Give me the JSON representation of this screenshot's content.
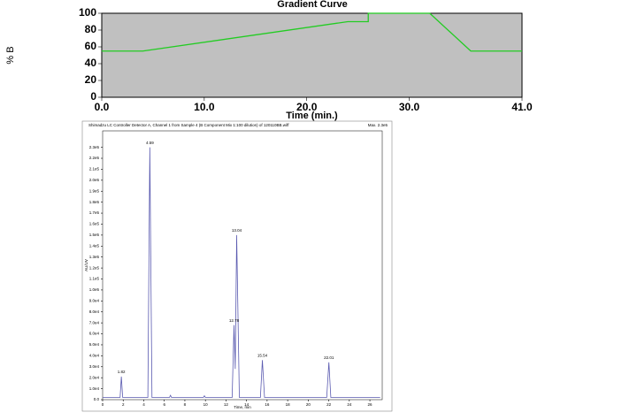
{
  "chart_data": [
    {
      "type": "line",
      "title": "Gradient Curve",
      "ylabel": "% B",
      "xlabel": "Time (min.)",
      "x": [
        0,
        4,
        24,
        26,
        26,
        32,
        36,
        41
      ],
      "series": [
        {
          "color": "#22cc22",
          "values": [
            55,
            55,
            90,
            90,
            100,
            100,
            55,
            55
          ]
        }
      ],
      "xlim": [
        0,
        41
      ],
      "ylim": [
        0,
        100
      ],
      "xticks": [
        {
          "value": 0,
          "label": "0.0"
        },
        {
          "value": 10,
          "label": "10.0"
        },
        {
          "value": 20,
          "label": "20.0"
        },
        {
          "value": 30,
          "label": "30.0"
        },
        {
          "value": 41,
          "label": "41.0"
        }
      ],
      "yticks": [
        0,
        20,
        40,
        60,
        80,
        100
      ],
      "background": "#c0c0c0"
    },
    {
      "type": "line",
      "title": "Shimadzu LC Controller Detector A, Channel 1 from Sample 4 (B Component Mix 1:100 dilution) of 120110BB.wiff",
      "subtitle": "Max. 2.3e5",
      "ylabel": "AU/UV",
      "xlabel": "Time, min",
      "x": [
        0,
        1.7,
        1.82,
        1.95,
        4.4,
        4.59,
        4.8,
        6.5,
        6.6,
        6.7,
        9.8,
        9.9,
        10,
        12.6,
        12.78,
        12.9,
        13.04,
        13.3,
        15.35,
        15.54,
        15.75,
        21.8,
        22.01,
        22.2,
        27
      ],
      "series": [
        {
          "color": "#5a5ab0",
          "values": [
            2000,
            2000,
            21000,
            2000,
            2000,
            230000,
            2000,
            2000,
            4000,
            2000,
            2000,
            3500,
            2000,
            2000,
            68000,
            28000,
            150000,
            2000,
            2000,
            36000,
            2000,
            2000,
            34000,
            2000,
            2000
          ]
        }
      ],
      "peaks": {
        "x": [
          1.82,
          4.59,
          12.78,
          13.04,
          15.54,
          22.01
        ],
        "values": [
          21000,
          230000,
          68000,
          150000,
          36000,
          34000
        ]
      },
      "xlim": [
        0,
        27.2
      ],
      "ylim": [
        0,
        245000
      ],
      "xticks": [
        0,
        2,
        4,
        6,
        8,
        10,
        12,
        14,
        16,
        18,
        20,
        22,
        24,
        26
      ],
      "yticks": [
        {
          "value": 0,
          "label": "0.0"
        },
        {
          "value": 10000,
          "label": "1.0e4"
        },
        {
          "value": 20000,
          "label": "2.0e4"
        },
        {
          "value": 30000,
          "label": "3.0e4"
        },
        {
          "value": 40000,
          "label": "4.0e4"
        },
        {
          "value": 50000,
          "label": "5.0e4"
        },
        {
          "value": 60000,
          "label": "6.0e4"
        },
        {
          "value": 70000,
          "label": "7.0e4"
        },
        {
          "value": 80000,
          "label": "8.0e4"
        },
        {
          "value": 90000,
          "label": "9.0e4"
        },
        {
          "value": 100000,
          "label": "1.0e5"
        },
        {
          "value": 110000,
          "label": "1.1e5"
        },
        {
          "value": 120000,
          "label": "1.2e5"
        },
        {
          "value": 130000,
          "label": "1.3e5"
        },
        {
          "value": 140000,
          "label": "1.4e5"
        },
        {
          "value": 150000,
          "label": "1.5e5"
        },
        {
          "value": 160000,
          "label": "1.6e5"
        },
        {
          "value": 170000,
          "label": "1.7e5"
        },
        {
          "value": 180000,
          "label": "1.8e5"
        },
        {
          "value": 190000,
          "label": "1.9e5"
        },
        {
          "value": 200000,
          "label": "2.0e5"
        },
        {
          "value": 210000,
          "label": "2.1e5"
        },
        {
          "value": 220000,
          "label": "2.2e5"
        },
        {
          "value": 230000,
          "label": "2.3e5"
        }
      ],
      "background": "#ffffff"
    }
  ]
}
